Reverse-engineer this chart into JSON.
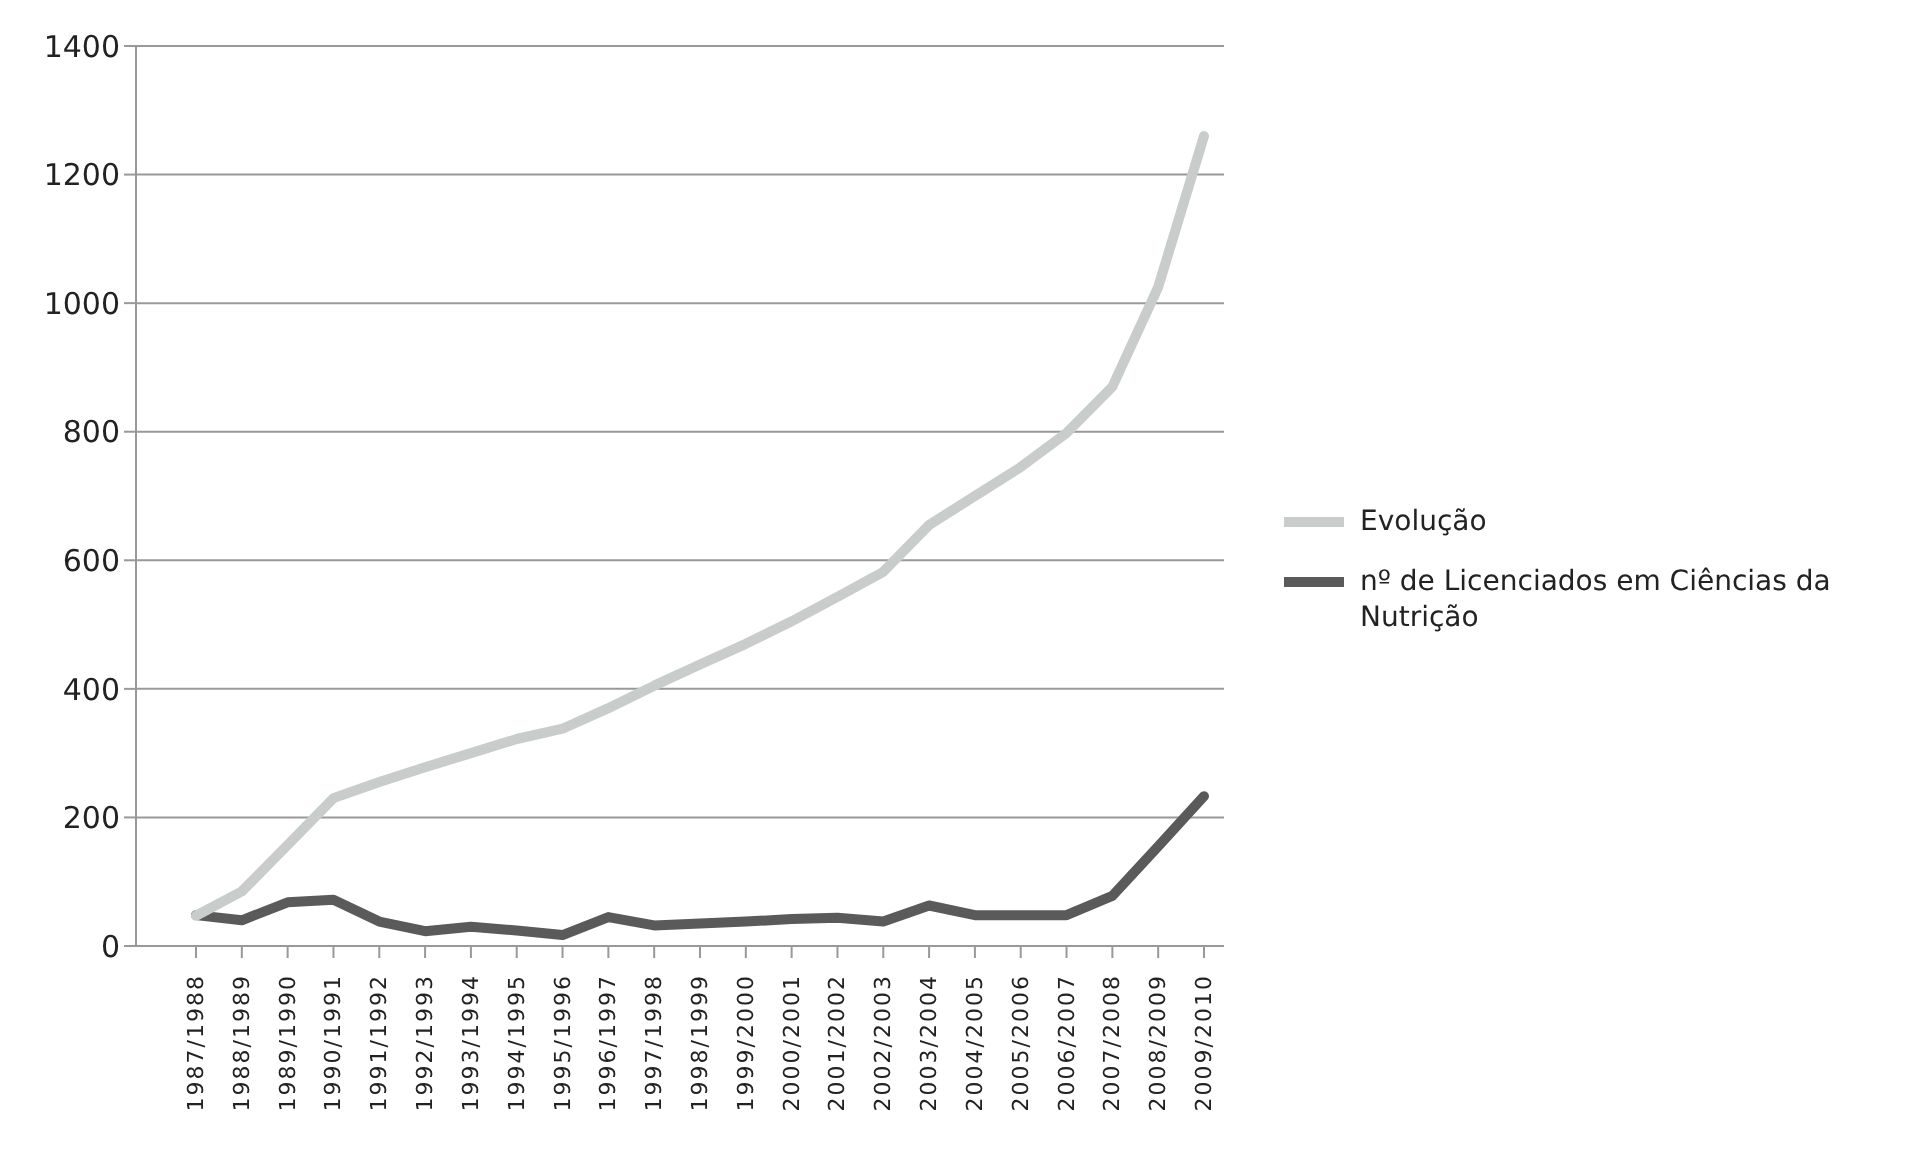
{
  "chart_data": {
    "type": "line",
    "categories": [
      "1987/1988",
      "1988/1989",
      "1989/1990",
      "1990/1991",
      "1991/1992",
      "1992/1993",
      "1993/1994",
      "1994/1995",
      "1995/1996",
      "1996/1997",
      "1997/1998",
      "1998/1999",
      "1999/2000",
      "2000/2001",
      "2001/2002",
      "2002/2003",
      "2003/2004",
      "2004/2005",
      "2005/2006",
      "2006/2007",
      "2007/2008",
      "2008/2009",
      "2009/2010"
    ],
    "series": [
      {
        "name": "nº de Licenciados em Ciências da Nutrição",
        "color": "#5a5a5a",
        "values": [
          48,
          40,
          68,
          72,
          38,
          23,
          30,
          24,
          17,
          45,
          32,
          35,
          38,
          42,
          44,
          38,
          63,
          48,
          48,
          48,
          78,
          155,
          233
        ]
      },
      {
        "name": "Evolução",
        "color": "#c8ccca",
        "values": [
          47,
          85,
          157,
          230,
          255,
          278,
          300,
          322,
          338,
          370,
          405,
          438,
          470,
          505,
          543,
          582,
          655,
          700,
          745,
          798,
          870,
          1025,
          1260
        ]
      }
    ],
    "ylim": [
      0,
      1400
    ],
    "yticks": [
      0,
      200,
      400,
      600,
      800,
      1000,
      1200,
      1400
    ],
    "grid": "y",
    "legend": "right",
    "marker": "none",
    "line_style": "solid"
  }
}
